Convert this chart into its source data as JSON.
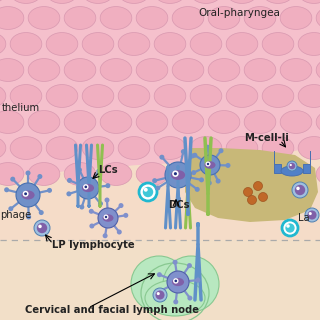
{
  "bg_color": "#f2dfc8",
  "epi_color": "#f5c0cc",
  "epi_cell_color": "#f0afc0",
  "epi_cell_edge": "#d898b0",
  "follicle_color": "#c8b878",
  "lymph_node_color": "#b8e8c0",
  "lymph_node_edge": "#88c890",
  "lamina_color": "#f5dcc8",
  "title_text": "Oral-pharyngea",
  "label_epithelium": "thelium",
  "label_lcs": "LCs",
  "label_dcs": "DCs",
  "label_macrophage": "phage",
  "label_lp": "LP lymphocyte",
  "label_mcell": "M-cell-li",
  "label_cervical": "Cervical and facial lymph node",
  "label_la": "La",
  "arrow_blue": "#6090c8",
  "arrow_green": "#90c050",
  "text_color": "#222222",
  "cell_blue": "#7090c8",
  "cell_blue_light": "#a0c0e0",
  "cell_blue_dark": "#4870b0",
  "cell_nucleus": "#8060a8",
  "cell_purple": "#9070b8",
  "teal_outer": "#20b8d0",
  "teal_inner": "#40c8d8",
  "mcell_blue": "#5080c8",
  "brown_cluster": "#c06828"
}
